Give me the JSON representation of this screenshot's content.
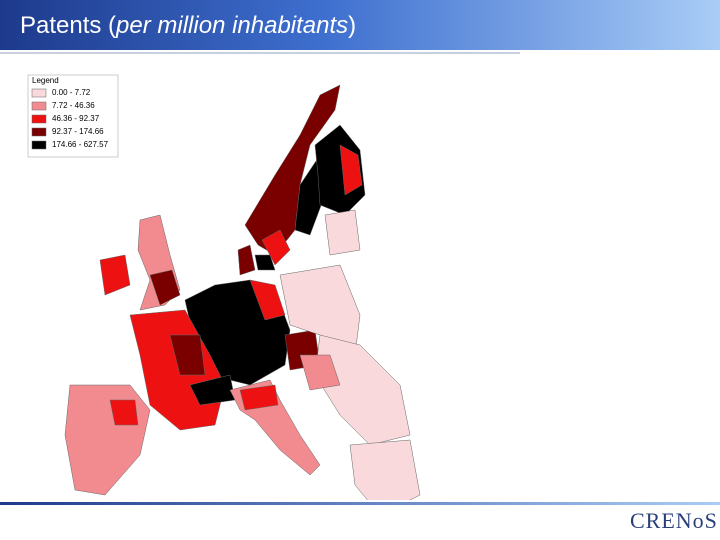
{
  "header": {
    "title_parts": [
      "Patents (",
      "per million inhabitants",
      ")"
    ]
  },
  "map": {
    "legend": {
      "title": "Legend",
      "entries": [
        {
          "label": "0.00 -    7.72",
          "color": "#f9d9dc"
        },
        {
          "label": "7.72 -  46.36",
          "color": "#f28b8f"
        },
        {
          "label": "46.36 -  92.37",
          "color": "#ee1111"
        },
        {
          "label": "92.37 - 174.66",
          "color": "#7a0000"
        },
        {
          "label": "174.66 - 627.57",
          "color": "#000000"
        }
      ]
    }
  },
  "footer": {
    "logo": "CRENoS"
  }
}
